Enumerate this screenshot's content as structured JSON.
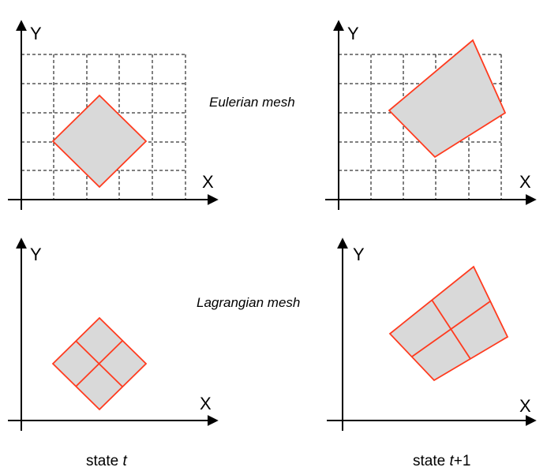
{
  "axes": {
    "x_label": "X",
    "y_label": "Y"
  },
  "mesh_labels": {
    "eulerian": "Eulerian mesh",
    "lagrangian": "Lagrangian mesh"
  },
  "states": {
    "left": {
      "prefix": "state ",
      "var": "t",
      "suffix": ""
    },
    "right": {
      "prefix": "state ",
      "var": "t",
      "suffix": "+1"
    }
  },
  "colors": {
    "fill": "#d9d9d9",
    "outline": "#ff3b1f",
    "axis": "#000000"
  }
}
